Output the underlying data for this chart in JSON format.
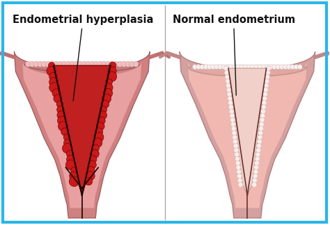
{
  "title_left": "Endometrial hyperplasia",
  "title_right": "Normal endometrium",
  "bg_color": "#ffffff",
  "border_color": "#29b6e8",
  "border_lw": 3,
  "font_size": 10.5,
  "label_color": "#111111",
  "arrow_color": "#111111",
  "left_body_color": "#e8a0a0",
  "left_body_edge": "#c07878",
  "left_inner_bg": "#c03030",
  "left_cavity_color": "#8B1010",
  "left_jagged_color": "#cc2020",
  "right_body_color": "#f0b8b0",
  "right_body_edge": "#c89090",
  "right_inner_bg": "#f0c8c0",
  "right_cavity_color": "#d49090",
  "right_jagged_color": "#e8d0cc"
}
